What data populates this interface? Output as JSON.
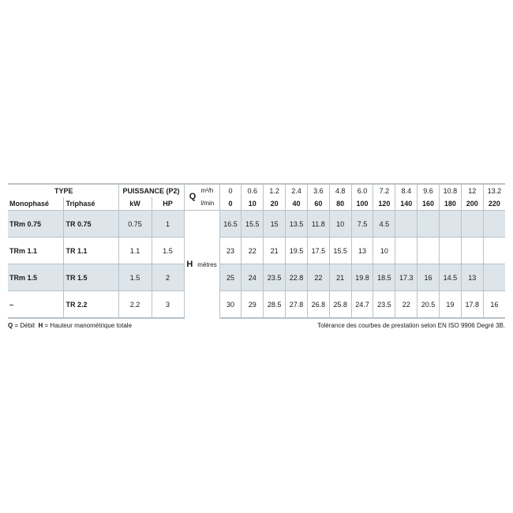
{
  "header": {
    "type": "TYPE",
    "puissance": "PUISSANCE (P2)",
    "monophase": "Monophasé",
    "triphase": "Triphasé",
    "kw": "kW",
    "hp": "HP",
    "q": "Q",
    "m3h": "m³/h",
    "lmin": "l/min",
    "h": "H",
    "metres": "mètres",
    "m3h_values": [
      "0",
      "0.6",
      "1.2",
      "2.4",
      "3.6",
      "4.8",
      "6.0",
      "7.2",
      "8.4",
      "9.6",
      "10.8",
      "12",
      "13.2"
    ],
    "lmin_values": [
      "0",
      "10",
      "20",
      "40",
      "60",
      "80",
      "100",
      "120",
      "140",
      "160",
      "180",
      "200",
      "220"
    ]
  },
  "rows": [
    {
      "mono": "TRm 0.75",
      "tri": "TR 0.75",
      "kw": "0.75",
      "hp": "1",
      "h": [
        "16.5",
        "15.5",
        "15",
        "13.5",
        "11.8",
        "10",
        "7.5",
        "4.5",
        "",
        "",
        "",
        "",
        ""
      ]
    },
    {
      "mono": "TRm 1.1",
      "tri": "TR 1.1",
      "kw": "1.1",
      "hp": "1.5",
      "h": [
        "23",
        "22",
        "21",
        "19.5",
        "17.5",
        "15.5",
        "13",
        "10",
        "",
        "",
        "",
        "",
        ""
      ]
    },
    {
      "mono": "TRm 1.5",
      "tri": "TR 1.5",
      "kw": "1.5",
      "hp": "2",
      "h": [
        "25",
        "24",
        "23.5",
        "22.8",
        "22",
        "21",
        "19.8",
        "18.5",
        "17.3",
        "16",
        "14.5",
        "13",
        ""
      ]
    },
    {
      "mono": "–",
      "tri": "TR 2.2",
      "kw": "2.2",
      "hp": "3",
      "h": [
        "30",
        "29",
        "28.5",
        "27.8",
        "26.8",
        "25.8",
        "24.7",
        "23.5",
        "22",
        "20.5",
        "19",
        "17.8",
        "16"
      ]
    }
  ],
  "footer": {
    "legend_q": "Q",
    "legend_q_text": "= Débit",
    "legend_h": "H",
    "legend_h_text": "= Hauteur manométrique totale",
    "tolerance": "Tolérance des courbes de prestation selon EN ISO 9906 Degré 3B."
  },
  "colors": {
    "row_shade": "#dde5ea",
    "border": "#b9c2c8"
  }
}
